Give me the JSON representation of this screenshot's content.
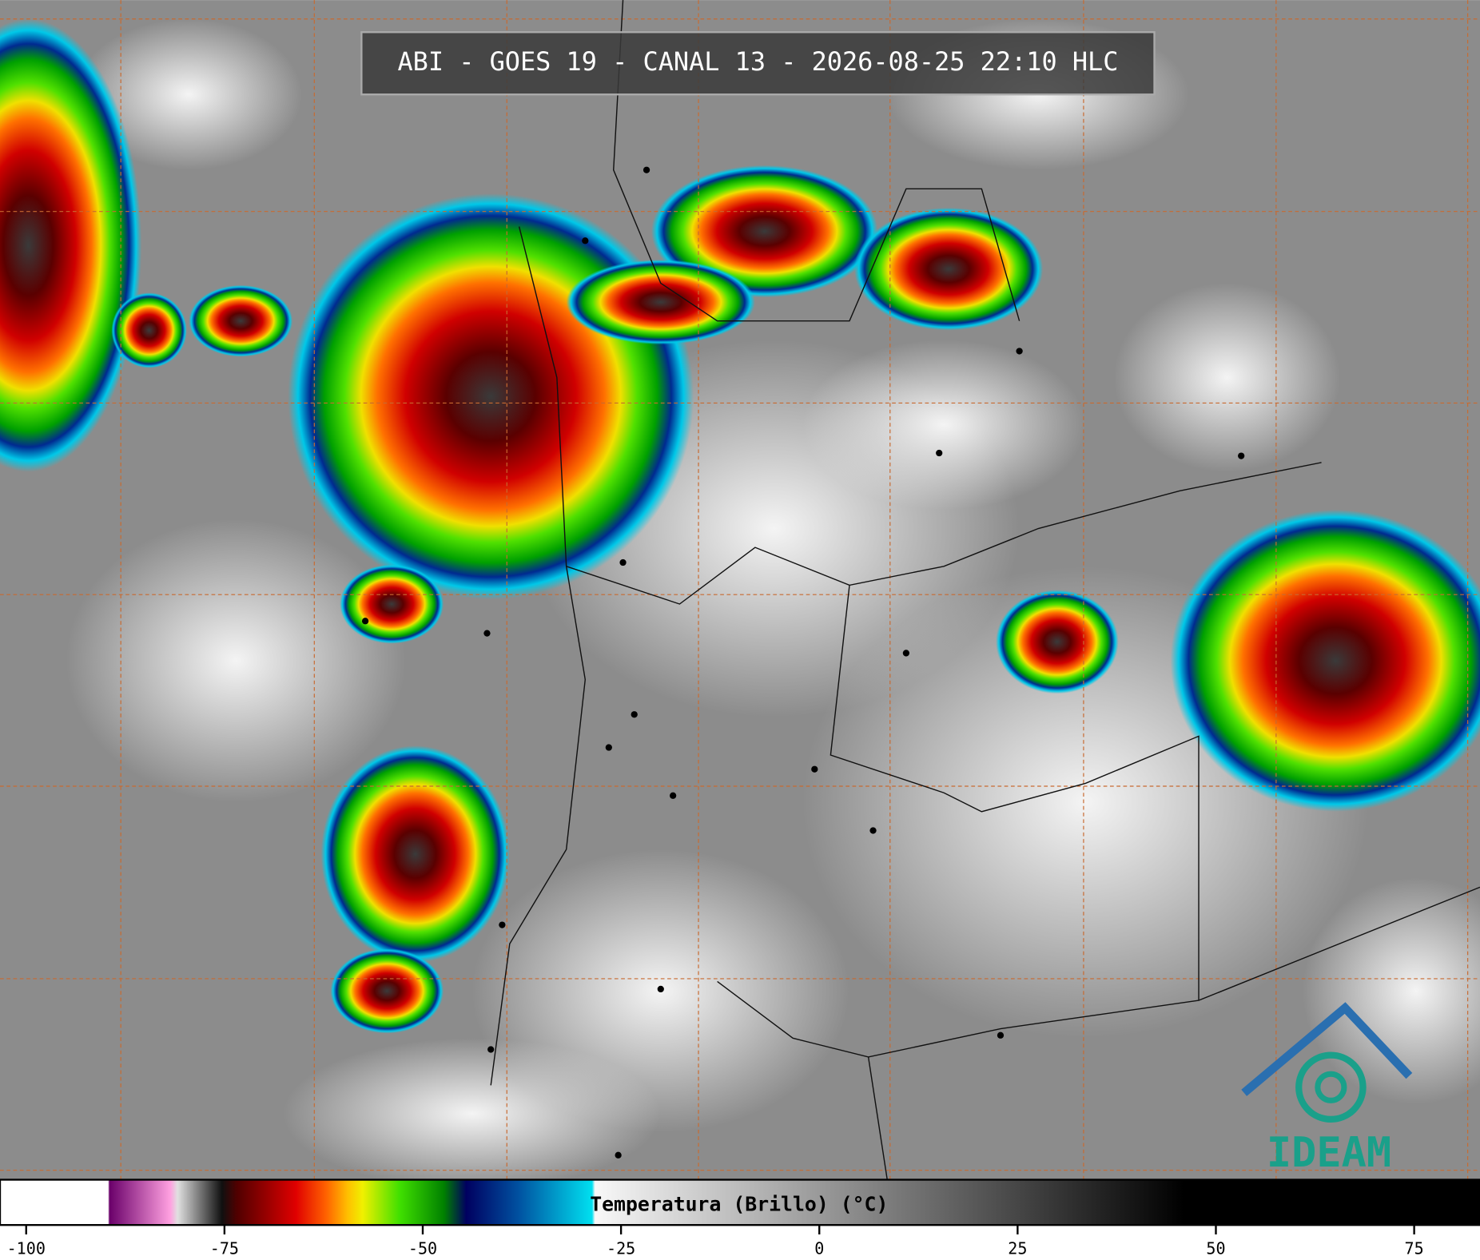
{
  "header": {
    "title": "ABI - GOES 19 - CANAL 13 - 2026-08-25 22:10 HLC"
  },
  "colorbar": {
    "label": "Temperatura (Brillo) (°C)",
    "lim": [
      -103.3,
      83.3
    ],
    "ticks": [
      -100,
      -75,
      -50,
      -25,
      0,
      25,
      50,
      75
    ]
  },
  "logo": {
    "text": "IDEAM"
  }
}
